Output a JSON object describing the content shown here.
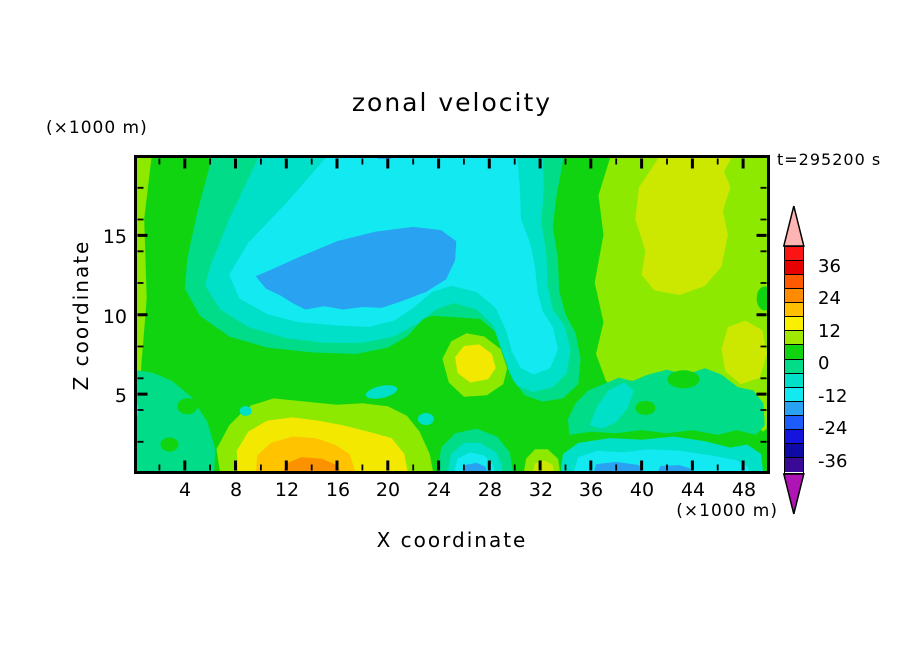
{
  "title": "zonal velocity",
  "timestamp": "t=295200 s",
  "axes": {
    "x_title": "X coordinate",
    "y_title": "Z coordinate",
    "x_unit": "(×1000 m)",
    "y_unit": "(×1000 m)",
    "x_tick_labels": [
      "4",
      "8",
      "12",
      "16",
      "20",
      "24",
      "28",
      "32",
      "36",
      "40",
      "44",
      "48"
    ],
    "y_tick_labels": [
      "15",
      "10",
      "5"
    ]
  },
  "colorbar": {
    "labels": [
      "36",
      "24",
      "12",
      "0",
      "-12",
      "-24",
      "-36"
    ],
    "cell_colors": [
      "#FA1412",
      "#E60200",
      "#FF5A00",
      "#FF8C00",
      "#FFBE00",
      "#F8F000",
      "#A0E800",
      "#11D411",
      "#00DC87",
      "#00E0C8",
      "#12E9F0",
      "#29A2F2",
      "#1C5CFA",
      "#1414DC",
      "#0F0AA6",
      "#3A0A96"
    ],
    "over_arrow_color": "#FFB4B4",
    "under_arrow_color": "#AF14B4"
  },
  "palette": {
    "green": "#11D411",
    "spring": "#00DC87",
    "turquoise": "#00E0C8",
    "cyan": "#12E9F0",
    "sky": "#29A2F2",
    "chartreuse": "#8DE900",
    "yellowgreen": "#CDE800",
    "yellow": "#F2E800",
    "amber": "#FFC300",
    "orange": "#FC9200",
    "frame": "#000000"
  },
  "chart_data": {
    "type": "filled_contour",
    "title": "zonal velocity",
    "xlabel": "X coordinate (×1000 m)",
    "ylabel": "Z coordinate (×1000 m)",
    "xlim": [
      0,
      50
    ],
    "ylim": [
      0,
      20
    ],
    "x_major_ticks": [
      4,
      8,
      12,
      16,
      20,
      24,
      28,
      32,
      36,
      40,
      44,
      48
    ],
    "y_major_ticks": [
      5,
      10,
      15
    ],
    "timestamp_s": 295200,
    "contour_interval": 6,
    "colorbar_labels": [
      36,
      24,
      12,
      0,
      -12,
      -24,
      -36
    ],
    "legend_position": "right",
    "grid": false,
    "features": [
      {
        "name": "negative core (sky-blue blob, ~-12 to -18)",
        "x_range": [
          9.6,
          25.5
        ],
        "z_range": [
          10.3,
          15.6
        ]
      },
      {
        "name": "cyan negative region (~-6 to -12)",
        "x_range": [
          7,
          33
        ],
        "z_range": [
          6,
          20
        ]
      },
      {
        "name": "concentric bands green→spring→turquoise→cyan around core",
        "x_range": [
          4,
          35
        ],
        "z_range": [
          5,
          20
        ]
      },
      {
        "name": "positive yellow-green lobe (~+6 to +12)",
        "x_range": [
          39.5,
          47
        ],
        "z_range": [
          11,
          20
        ]
      },
      {
        "name": "right-edge yellow-green patch",
        "x_range": [
          46.3,
          50
        ],
        "z_range": [
          5.6,
          9.6
        ]
      },
      {
        "name": "bottom warm jet: chartreuse/yellow/amber ring with orange core (~+18 to +30)",
        "x_range": [
          6.8,
          23.6
        ],
        "z_range": [
          0,
          4.7
        ],
        "core_x": [
          11.7,
          16.4
        ]
      },
      {
        "name": "yellow maximum spot (~+12)",
        "x_range": [
          25,
          28.6
        ],
        "z_range": [
          5.6,
          8.8
        ]
      },
      {
        "name": "bottom negative strip with sky core",
        "x_range": [
          23.9,
          29.9
        ],
        "z_range": [
          0,
          2.8
        ]
      },
      {
        "name": "bottom-right negative band with sky cores",
        "x_range": [
          33.6,
          49.6
        ],
        "z_range": [
          0,
          2.3
        ]
      },
      {
        "name": "small chartreuse/yellow spot at bottom",
        "x_range": [
          30.7,
          33.6
        ],
        "z_range": [
          0,
          1.5
        ]
      },
      {
        "name": "small chartreuse dot",
        "x_range": [
          36.8,
          38.4
        ],
        "z_range": [
          7.8,
          9.0
        ]
      }
    ]
  }
}
